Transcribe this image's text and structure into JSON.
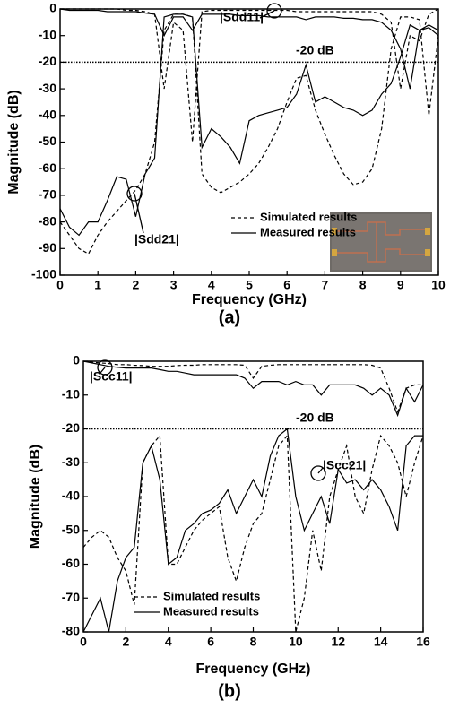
{
  "chart_data": [
    {
      "type": "line",
      "panel": "(a)",
      "xlabel": "Frequency (GHz)",
      "ylabel": "Magnitude (dB)",
      "xlim": [
        0,
        10
      ],
      "ylim": [
        -100,
        0
      ],
      "xticks": [
        0,
        1,
        2,
        3,
        4,
        5,
        6,
        7,
        8,
        9,
        10
      ],
      "yticks": [
        0,
        -10,
        -20,
        -30,
        -40,
        -50,
        -60,
        -70,
        -80,
        -90,
        -100
      ],
      "reference": {
        "value": -20,
        "label": "-20 dB"
      },
      "annotations": [
        "|Sdd11|",
        "|Sdd21|"
      ],
      "x": [
        0,
        0.25,
        0.5,
        0.75,
        1,
        1.25,
        1.5,
        1.75,
        2,
        2.25,
        2.5,
        2.75,
        3,
        3.25,
        3.5,
        3.75,
        4,
        4.25,
        4.5,
        4.75,
        5,
        5.25,
        5.5,
        5.75,
        6,
        6.25,
        6.5,
        6.75,
        7,
        7.25,
        7.5,
        7.75,
        8,
        8.25,
        8.5,
        8.75,
        9,
        9.25,
        9.5,
        9.75,
        10
      ],
      "series": [
        {
          "name": "Simulated results",
          "dash": "dashed",
          "color": "#000000",
          "curves": [
            [
              0,
              0,
              0,
              0,
              0,
              0,
              0,
              -0.5,
              -0.5,
              -1,
              -2,
              -30,
              -5,
              -8,
              -50,
              -1,
              -0.5,
              -0.5,
              -0.5,
              -0.5,
              -0.5,
              -0.5,
              -0.5,
              -0.5,
              -0.5,
              -1,
              -1,
              -1,
              -1,
              -1,
              -1,
              -1,
              -1,
              -1,
              -2,
              -5,
              -30,
              -10,
              -12,
              -2,
              0
            ],
            [
              -80,
              -85,
              -90,
              -92,
              -85,
              -80,
              -76,
              -72,
              -68,
              -62,
              -50,
              -8,
              -2,
              -2,
              -3,
              -62,
              -67,
              -69,
              -67,
              -65,
              -62,
              -58,
              -52,
              -45,
              -35,
              -26,
              -25,
              -38,
              -47,
              -55,
              -62,
              -66,
              -65,
              -60,
              -45,
              -15,
              -3,
              -3,
              -4,
              -40,
              -10
            ]
          ]
        },
        {
          "name": "Measured results",
          "dash": "solid",
          "color": "#000000",
          "curves": [
            [
              0,
              -0.5,
              -0.5,
              -0.5,
              -0.5,
              -1,
              -1,
              -1,
              -1,
              -1.5,
              -2,
              -10,
              -3,
              -3,
              -8,
              -2,
              -2,
              -2,
              -2,
              -2.5,
              -2.5,
              -2.5,
              -3,
              -3,
              -3,
              -3,
              -4,
              -3,
              -3,
              -3,
              -3.5,
              -3.5,
              -4,
              -4,
              -5,
              -8,
              -15,
              -30,
              -8,
              -6,
              -8
            ],
            [
              -75,
              -82,
              -85,
              -80,
              -80,
              -72,
              -63,
              -64,
              -78,
              -62,
              -56,
              -3,
              -2,
              -2,
              -3,
              -52,
              -45,
              -48,
              -52,
              -58,
              -42,
              -40,
              -39,
              -38,
              -37,
              -32,
              -21,
              -35,
              -33,
              -35,
              -37,
              -38,
              -40,
              -38,
              -32,
              -28,
              -18,
              -6,
              -8,
              -7,
              -10
            ]
          ]
        }
      ]
    },
    {
      "type": "line",
      "panel": "(b)",
      "xlabel": "Frequency (GHz)",
      "ylabel": "Magnitude (dB)",
      "xlim": [
        0,
        16
      ],
      "ylim": [
        -80,
        0
      ],
      "xticks": [
        0,
        2,
        4,
        6,
        8,
        10,
        12,
        14,
        16
      ],
      "yticks": [
        0,
        -10,
        -20,
        -30,
        -40,
        -50,
        -60,
        -70,
        -80
      ],
      "reference": {
        "value": -20,
        "label": "-20 dB"
      },
      "annotations": [
        "|Scc11|",
        "|Scc21|"
      ],
      "x": [
        0,
        0.4,
        0.8,
        1.2,
        1.6,
        2,
        2.4,
        2.8,
        3.2,
        3.6,
        4,
        4.4,
        4.8,
        5.2,
        5.6,
        6,
        6.4,
        6.8,
        7.2,
        7.6,
        8,
        8.4,
        8.8,
        9.2,
        9.6,
        10,
        10.4,
        10.8,
        11.2,
        11.6,
        12,
        12.4,
        12.8,
        13.2,
        13.6,
        14,
        14.4,
        14.8,
        15.2,
        15.6,
        16
      ],
      "series": [
        {
          "name": "Simulated results",
          "dash": "dashed",
          "color": "#000000",
          "curves": [
            [
              0,
              -0.3,
              -0.5,
              -0.7,
              -1,
              -1,
              -1.2,
              -1.3,
              -1.5,
              -1.5,
              -1.5,
              -1.3,
              -1.2,
              -1.2,
              -1,
              -1,
              -1,
              -1,
              -1,
              -1.2,
              -5,
              -1.5,
              -1.2,
              -1,
              -1,
              -1,
              -1,
              -1,
              -1,
              -1,
              -1,
              -1,
              -1,
              -1,
              -1.2,
              -2,
              -8,
              -15,
              -8,
              -7,
              -7
            ],
            [
              -55,
              -52,
              -50,
              -52,
              -58,
              -62,
              -72,
              -30,
              -25,
              -22,
              -60,
              -60,
              -55,
              -50,
              -47,
              -45,
              -43,
              -58,
              -65,
              -55,
              -48,
              -45,
              -35,
              -25,
              -22,
              -80,
              -70,
              -50,
              -62,
              -40,
              -32,
              -25,
              -40,
              -45,
              -32,
              -22,
              -25,
              -30,
              -40,
              -30,
              -22
            ]
          ]
        },
        {
          "name": "Measured results",
          "dash": "solid",
          "color": "#000000",
          "curves": [
            [
              0,
              -0.5,
              -1,
              -1.5,
              -1.8,
              -2,
              -2,
              -2,
              -2,
              -2.5,
              -3,
              -3,
              -3.5,
              -4,
              -4,
              -4,
              -4,
              -4,
              -4,
              -5,
              -8,
              -6,
              -6,
              -6,
              -7,
              -6,
              -7,
              -7,
              -10,
              -7,
              -7,
              -7,
              -7,
              -8,
              -10,
              -8,
              -10,
              -16,
              -8,
              -12,
              -7
            ],
            [
              -80,
              -75,
              -70,
              -80,
              -65,
              -58,
              -55,
              -30,
              -25,
              -35,
              -60,
              -58,
              -50,
              -48,
              -45,
              -44,
              -42,
              -38,
              -45,
              -40,
              -35,
              -40,
              -28,
              -22,
              -20,
              -40,
              -50,
              -45,
              -40,
              -48,
              -32,
              -36,
              -35,
              -38,
              -35,
              -38,
              -43,
              -50,
              -25,
              -22,
              -22
            ]
          ]
        }
      ]
    }
  ]
}
